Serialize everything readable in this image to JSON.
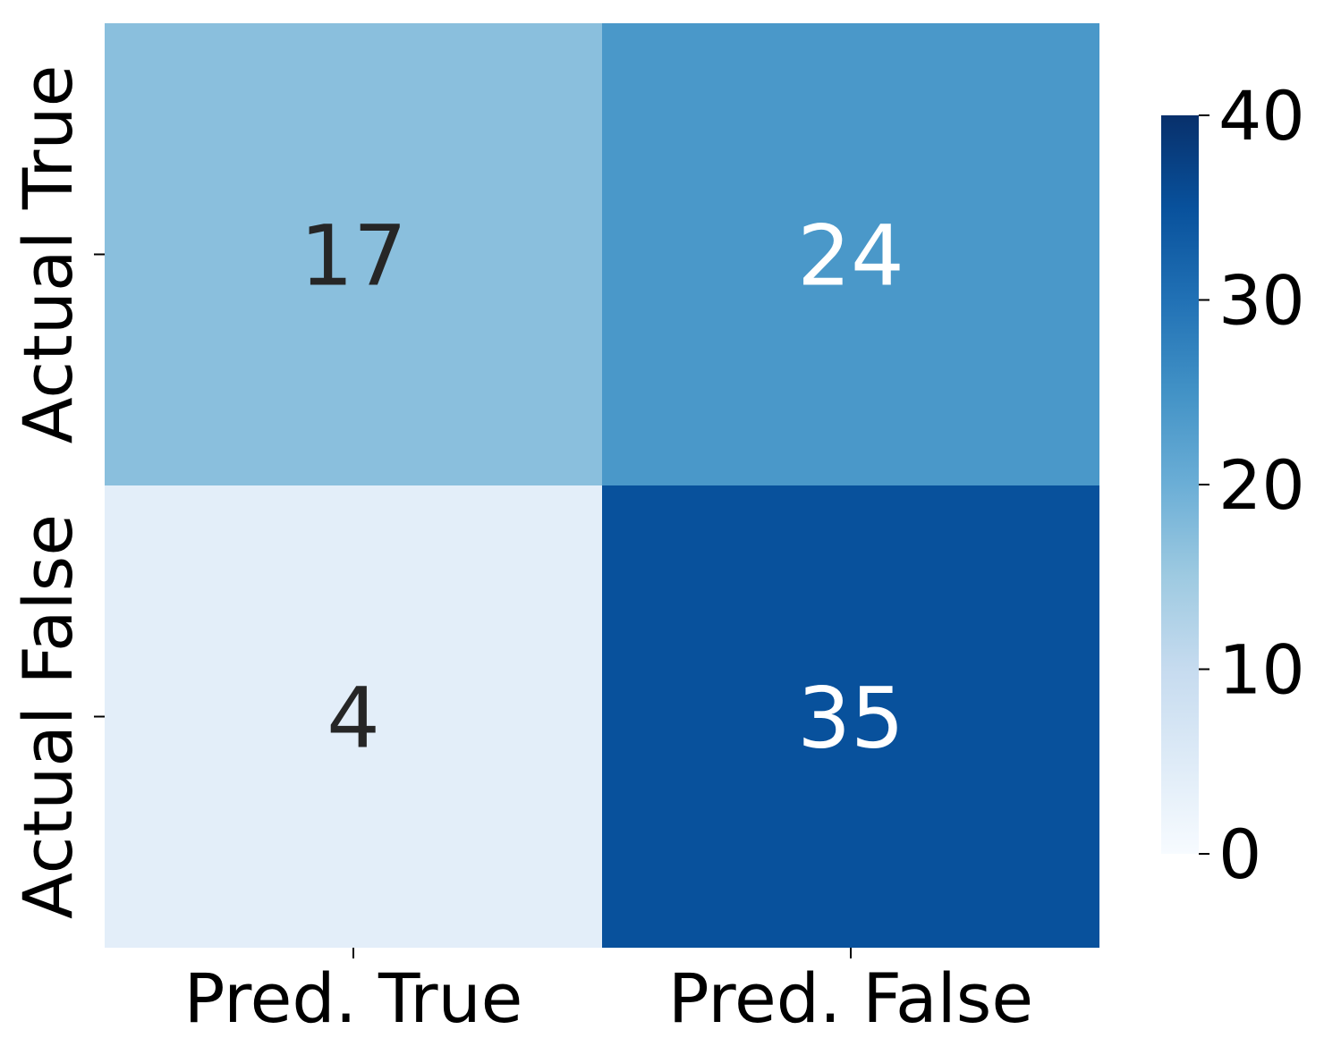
{
  "chart_data": {
    "type": "heatmap",
    "title": "",
    "xlabel": "",
    "ylabel": "",
    "x_categories": [
      "Pred. True",
      "Pred. False"
    ],
    "y_categories": [
      "Actual True",
      "Actual False"
    ],
    "values": [
      [
        17,
        24
      ],
      [
        4,
        35
      ]
    ],
    "colormap": "Blues",
    "colorbar": {
      "min": 0,
      "max": 40,
      "ticks": [
        0,
        10,
        20,
        30,
        40
      ],
      "tick_labels": [
        "0",
        "10",
        "20",
        "30",
        "40"
      ]
    },
    "colors": {
      "annotation_dark": "#262626",
      "annotation_light": "#ffffff"
    }
  }
}
